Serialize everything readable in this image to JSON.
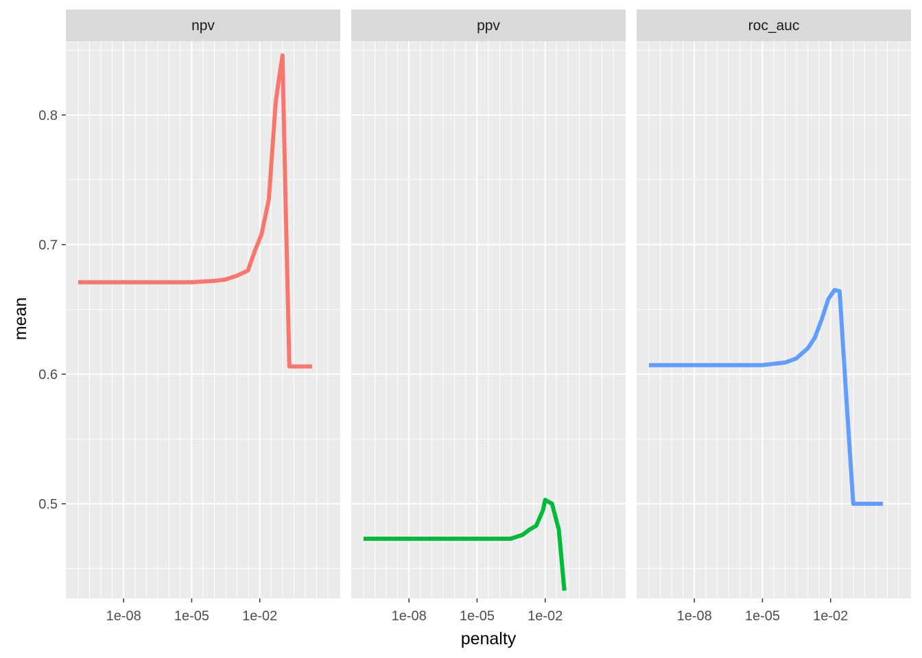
{
  "chart_data": {
    "type": "line",
    "facet_layout": "1 row x 3 columns, shared y axis",
    "xlabel": "penalty",
    "ylabel": "mean",
    "x_scale": "log10",
    "xlim": [
      1e-10,
      10
    ],
    "ylim": [
      0.427,
      0.857
    ],
    "x_ticks": [
      {
        "value": 1e-08,
        "label": "1e-08"
      },
      {
        "value": 1e-05,
        "label": "1e-05"
      },
      {
        "value": 0.01,
        "label": "1e-02"
      }
    ],
    "y_ticks": [
      {
        "value": 0.5,
        "label": "0.5"
      },
      {
        "value": 0.6,
        "label": "0.6"
      },
      {
        "value": 0.7,
        "label": "0.7"
      },
      {
        "value": 0.8,
        "label": "0.8"
      }
    ],
    "grid": true,
    "legend": "none",
    "panels": [
      {
        "strip": "npv",
        "color": "#F8766D",
        "x": [
          1e-10,
          1e-09,
          1e-08,
          1e-07,
          1e-06,
          1e-05,
          0.0001,
          0.0003,
          0.001,
          0.003,
          0.006,
          0.012,
          0.025,
          0.05,
          0.07,
          0.1,
          0.13,
          0.2,
          0.5,
          1,
          2
        ],
        "y": [
          0.671,
          0.671,
          0.671,
          0.671,
          0.671,
          0.671,
          0.672,
          0.673,
          0.676,
          0.68,
          0.695,
          0.708,
          0.735,
          0.81,
          0.828,
          0.846,
          0.75,
          0.606,
          0.606,
          0.606,
          0.606
        ]
      },
      {
        "strip": "ppv",
        "color": "#00BA38",
        "x": [
          1e-10,
          1e-09,
          1e-08,
          1e-07,
          1e-06,
          1e-05,
          0.0001,
          0.0003,
          0.001,
          0.002,
          0.004,
          0.008,
          0.01,
          0.02,
          0.04,
          0.07
        ],
        "y": [
          0.473,
          0.473,
          0.473,
          0.473,
          0.473,
          0.473,
          0.473,
          0.473,
          0.476,
          0.48,
          0.483,
          0.495,
          0.503,
          0.5,
          0.48,
          0.433
        ]
      },
      {
        "strip": "roc_auc",
        "color": "#619CFF",
        "x": [
          1e-10,
          1e-09,
          1e-08,
          1e-07,
          1e-06,
          1e-05,
          3e-05,
          0.0001,
          0.0003,
          0.001,
          0.002,
          0.004,
          0.008,
          0.015,
          0.025,
          0.05,
          0.1,
          0.5,
          1,
          2
        ],
        "y": [
          0.607,
          0.607,
          0.607,
          0.607,
          0.607,
          0.607,
          0.608,
          0.609,
          0.612,
          0.62,
          0.628,
          0.642,
          0.658,
          0.665,
          0.664,
          0.58,
          0.5,
          0.5,
          0.5,
          0.5
        ]
      }
    ]
  }
}
